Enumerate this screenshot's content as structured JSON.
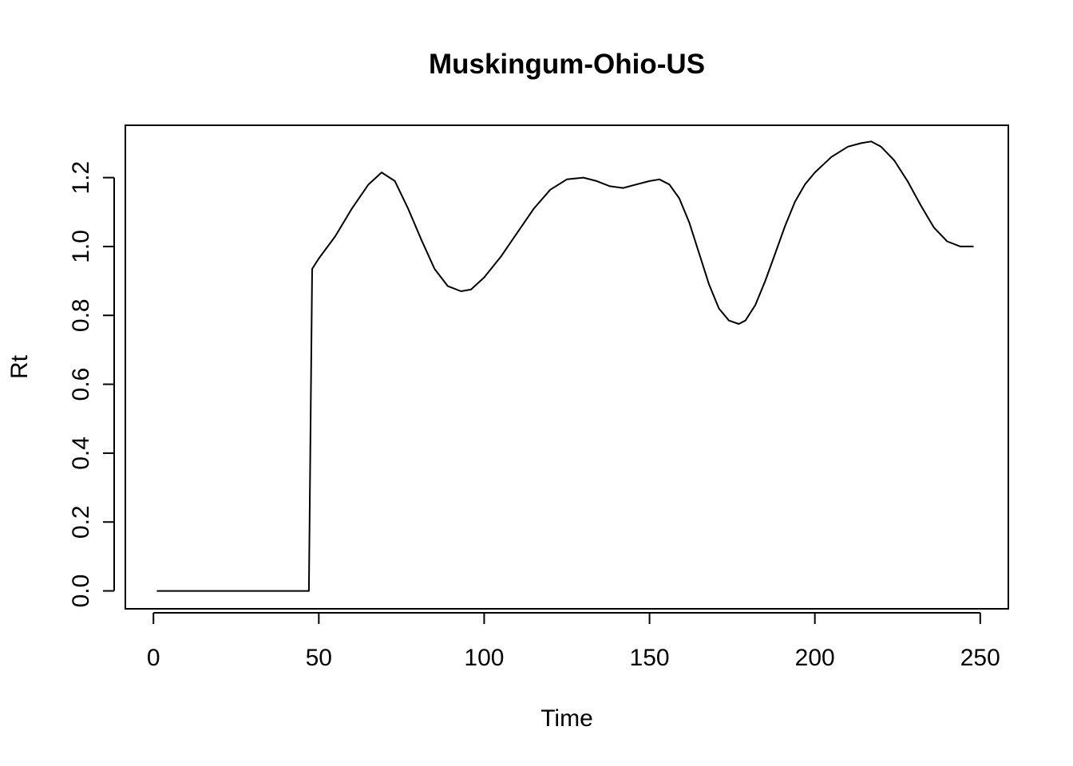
{
  "chart_data": {
    "type": "line",
    "title": "Muskingum-Ohio-US",
    "xlabel": "Time",
    "ylabel": "Rt",
    "xlim": [
      -8.5,
      258.5
    ],
    "ylim": [
      -0.052,
      1.352
    ],
    "xticks": [
      0,
      50,
      100,
      150,
      200,
      250
    ],
    "xtick_labels": [
      "0",
      "50",
      "100",
      "150",
      "200",
      "250"
    ],
    "yticks": [
      0.0,
      0.2,
      0.4,
      0.6,
      0.8,
      1.0,
      1.2
    ],
    "ytick_labels": [
      "0.0",
      "0.2",
      "0.4",
      "0.6",
      "0.8",
      "1.0",
      "1.2"
    ],
    "grid": false,
    "legend": "none",
    "line_color": "#000000",
    "series": [
      {
        "x": [
          1,
          10,
          20,
          30,
          40,
          47,
          48,
          50,
          55,
          60,
          65,
          69,
          73,
          77,
          81,
          85,
          89,
          93,
          96,
          100,
          105,
          110,
          115,
          120,
          125,
          130,
          134,
          138,
          142,
          146,
          150,
          153,
          156,
          159,
          162,
          165,
          168,
          171,
          174,
          177,
          179,
          182,
          185,
          188,
          191,
          194,
          197,
          200,
          205,
          210,
          214,
          217,
          220,
          224,
          228,
          232,
          236,
          240,
          244,
          248
        ],
        "y": [
          0,
          0,
          0,
          0,
          0,
          0,
          0.935,
          0.965,
          1.03,
          1.11,
          1.18,
          1.215,
          1.19,
          1.11,
          1.02,
          0.935,
          0.885,
          0.87,
          0.875,
          0.91,
          0.97,
          1.04,
          1.11,
          1.165,
          1.195,
          1.2,
          1.19,
          1.175,
          1.17,
          1.18,
          1.19,
          1.195,
          1.18,
          1.14,
          1.07,
          0.98,
          0.89,
          0.82,
          0.785,
          0.775,
          0.785,
          0.83,
          0.9,
          0.98,
          1.06,
          1.13,
          1.18,
          1.215,
          1.26,
          1.29,
          1.3,
          1.305,
          1.29,
          1.25,
          1.19,
          1.12,
          1.055,
          1.015,
          1.0,
          1.0
        ]
      }
    ]
  }
}
